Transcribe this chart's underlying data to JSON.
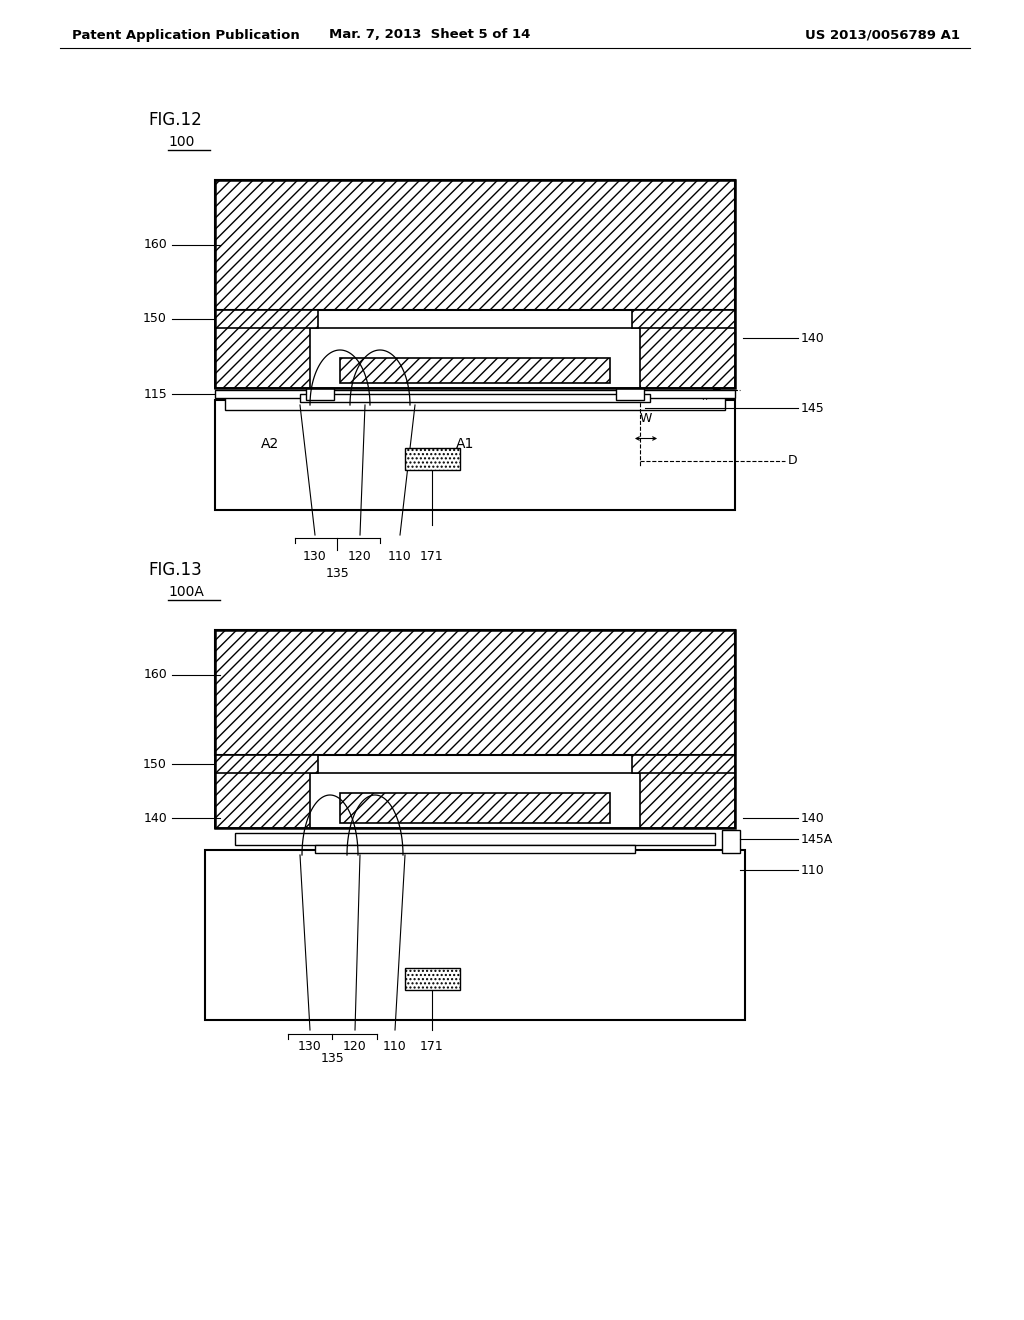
{
  "header_left": "Patent Application Publication",
  "header_mid": "Mar. 7, 2013  Sheet 5 of 14",
  "header_right": "US 2013/0056789 A1",
  "fig12_label": "FIG.12",
  "fig12_ref": "100",
  "fig13_label": "FIG.13",
  "fig13_ref": "100A",
  "bg_color": "#ffffff",
  "line_color": "#000000"
}
